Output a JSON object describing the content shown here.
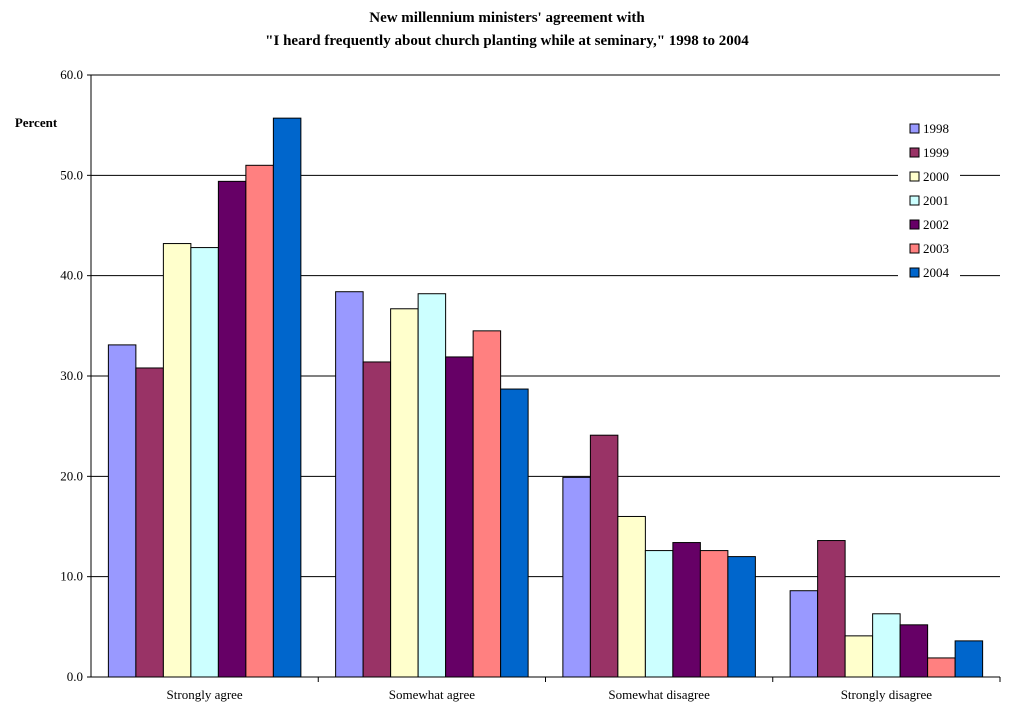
{
  "chart_data": {
    "type": "bar",
    "title_lines": [
      "New millennium ministers' agreement with",
      "\"I heard frequently about church planting while at seminary,\" 1998 to 2004"
    ],
    "ylabel": "Percent",
    "xlabel": "",
    "ylim": [
      0,
      60
    ],
    "yticks": [
      "0.0",
      "10.0",
      "20.0",
      "30.0",
      "40.0",
      "50.0",
      "60.0"
    ],
    "ytick_values": [
      0,
      10,
      20,
      30,
      40,
      50,
      60
    ],
    "grid": true,
    "legend_position": "top-right",
    "categories": [
      "Strongly agree",
      "Somewhat agree",
      "Somewhat disagree",
      "Strongly disagree"
    ],
    "series": [
      {
        "name": "1998",
        "color": "#9999ff",
        "values": [
          33.1,
          38.4,
          19.9,
          8.6
        ]
      },
      {
        "name": "1999",
        "color": "#993366",
        "values": [
          30.8,
          31.4,
          24.1,
          13.6
        ]
      },
      {
        "name": "2000",
        "color": "#ffffcc",
        "values": [
          43.2,
          36.7,
          16.0,
          4.1
        ]
      },
      {
        "name": "2001",
        "color": "#ccffff",
        "values": [
          42.8,
          38.2,
          12.6,
          6.3
        ]
      },
      {
        "name": "2002",
        "color": "#660066",
        "values": [
          49.4,
          31.9,
          13.4,
          5.2
        ]
      },
      {
        "name": "2003",
        "color": "#ff8080",
        "values": [
          51.0,
          34.5,
          12.6,
          1.9
        ]
      },
      {
        "name": "2004",
        "color": "#0066cc",
        "values": [
          55.7,
          28.7,
          12.0,
          3.6
        ]
      }
    ]
  }
}
